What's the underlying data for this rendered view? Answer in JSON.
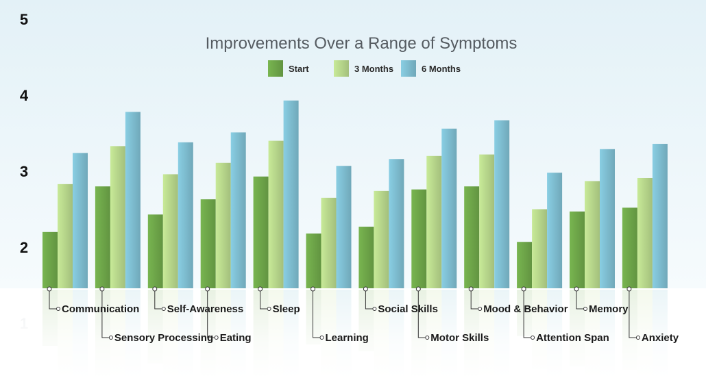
{
  "chart_data": {
    "type": "bar",
    "title": "Improvements Over a Range of Symptoms",
    "xlabel": "",
    "ylabel": "",
    "ylim": [
      1,
      5
    ],
    "yticks": [
      "1",
      "2",
      "3",
      "4",
      "5"
    ],
    "legend_position": "top-center",
    "grid": false,
    "categories": [
      "Communication",
      "Sensory Processing",
      "Self-Awareness",
      "Eating",
      "Sleep",
      "Learning",
      "Social Skills",
      "Motor Skills",
      "Mood & Behavior",
      "Attention Span",
      "Memory",
      "Anxiety"
    ],
    "series": [
      {
        "name": "Start",
        "color": "#6fa84a",
        "values": [
          2.2,
          2.8,
          2.43,
          2.63,
          2.93,
          2.18,
          2.27,
          2.76,
          2.8,
          2.07,
          2.47,
          2.52
        ]
      },
      {
        "name": "3 Months",
        "color": "#b9d98d",
        "values": [
          2.83,
          3.33,
          2.96,
          3.11,
          3.4,
          2.65,
          2.74,
          3.2,
          3.22,
          2.5,
          2.87,
          2.91
        ]
      },
      {
        "name": "6 Months",
        "color": "#7fbfd2",
        "values": [
          3.24,
          3.78,
          3.38,
          3.51,
          3.93,
          3.07,
          3.16,
          3.56,
          3.67,
          2.98,
          3.29,
          3.36
        ]
      }
    ]
  }
}
